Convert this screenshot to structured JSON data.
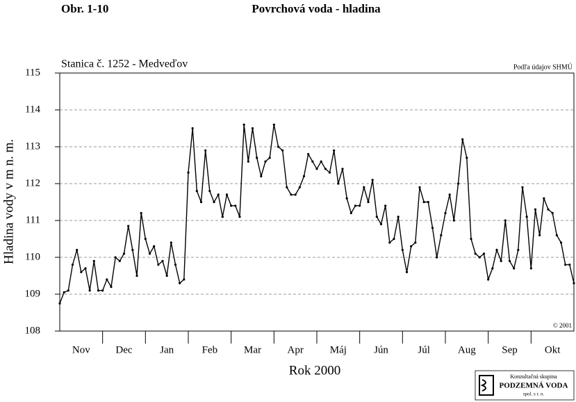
{
  "chart_data": {
    "type": "line",
    "figure_number": "Obr. 1-10",
    "title": "Povrchová voda - hladina",
    "subtitle": "Stanica č. 1252 - Medveďov",
    "source": "Podľa údajov SHMÚ",
    "copyright": "© 2001",
    "xlabel": "Rok 2000",
    "ylabel": "Hladina vody v m n. m.",
    "ylim": [
      108,
      115
    ],
    "yticks": [
      108,
      109,
      110,
      111,
      112,
      113,
      114,
      115
    ],
    "grid": true,
    "color": "#000000",
    "categories": [
      null,
      null,
      null,
      null,
      null,
      "Nov",
      null,
      null,
      null,
      null,
      null,
      null,
      null,
      null,
      null,
      "Dec",
      null,
      null,
      null,
      null,
      null,
      null,
      null,
      null,
      null,
      "Jan",
      null,
      null,
      null,
      null,
      null,
      null,
      null,
      null,
      null,
      "Feb",
      null,
      null,
      null,
      null,
      null,
      null,
      null,
      null,
      null,
      "Mar",
      null,
      null,
      null,
      null,
      null,
      null,
      null,
      null,
      null,
      "Apr",
      null,
      null,
      null,
      null,
      null,
      null,
      null,
      null,
      null,
      "Máj",
      null,
      null,
      null,
      null,
      null,
      null,
      null,
      null,
      null,
      "Jún",
      null,
      null,
      null,
      null,
      null,
      null,
      null,
      null,
      null,
      "Júl",
      null,
      null,
      null,
      null,
      null,
      null,
      null,
      null,
      null,
      "Aug",
      null,
      null,
      null,
      null,
      null,
      null,
      null,
      null,
      null,
      "Sep",
      null,
      null,
      null,
      null,
      null,
      null,
      null,
      null,
      null,
      "Okt",
      null,
      null,
      null,
      null,
      null
    ],
    "values": [
      108.75,
      109.05,
      109.1,
      109.8,
      110.2,
      109.6,
      109.7,
      109.1,
      109.9,
      109.1,
      109.1,
      109.4,
      109.2,
      110.0,
      109.9,
      110.1,
      110.85,
      110.2,
      109.5,
      111.2,
      110.5,
      110.1,
      110.3,
      109.8,
      109.9,
      109.5,
      110.4,
      109.8,
      109.3,
      109.4,
      112.3,
      113.5,
      111.8,
      111.5,
      112.9,
      111.8,
      111.5,
      111.7,
      111.1,
      111.7,
      111.4,
      111.4,
      111.1,
      113.6,
      112.6,
      113.5,
      112.7,
      112.2,
      112.6,
      112.7,
      113.6,
      113.0,
      112.9,
      111.9,
      111.7,
      111.7,
      111.9,
      112.2,
      112.8,
      112.6,
      112.4,
      112.6,
      112.4,
      112.3,
      112.9,
      112.0,
      112.4,
      111.6,
      111.2,
      111.4,
      111.4,
      111.9,
      111.5,
      112.1,
      111.1,
      110.9,
      111.4,
      110.4,
      110.5,
      111.1,
      110.2,
      109.6,
      110.3,
      110.4,
      111.9,
      111.5,
      111.5,
      110.8,
      110.0,
      110.6,
      111.2,
      111.7,
      111.0,
      112.0,
      113.2,
      112.7,
      110.5,
      110.1,
      110.0,
      110.1,
      109.4,
      109.7,
      110.2,
      109.9,
      111.0,
      109.9,
      109.7,
      110.2,
      111.9,
      111.1,
      109.7,
      111.3,
      110.6,
      111.6,
      111.3,
      111.2,
      110.6,
      110.4,
      109.8,
      109.8,
      109.3
    ]
  },
  "logo": {
    "caption": "Konzultačná skupina",
    "name": "PODZEMNÁ VODA",
    "suffix": "spol. s r. o."
  }
}
